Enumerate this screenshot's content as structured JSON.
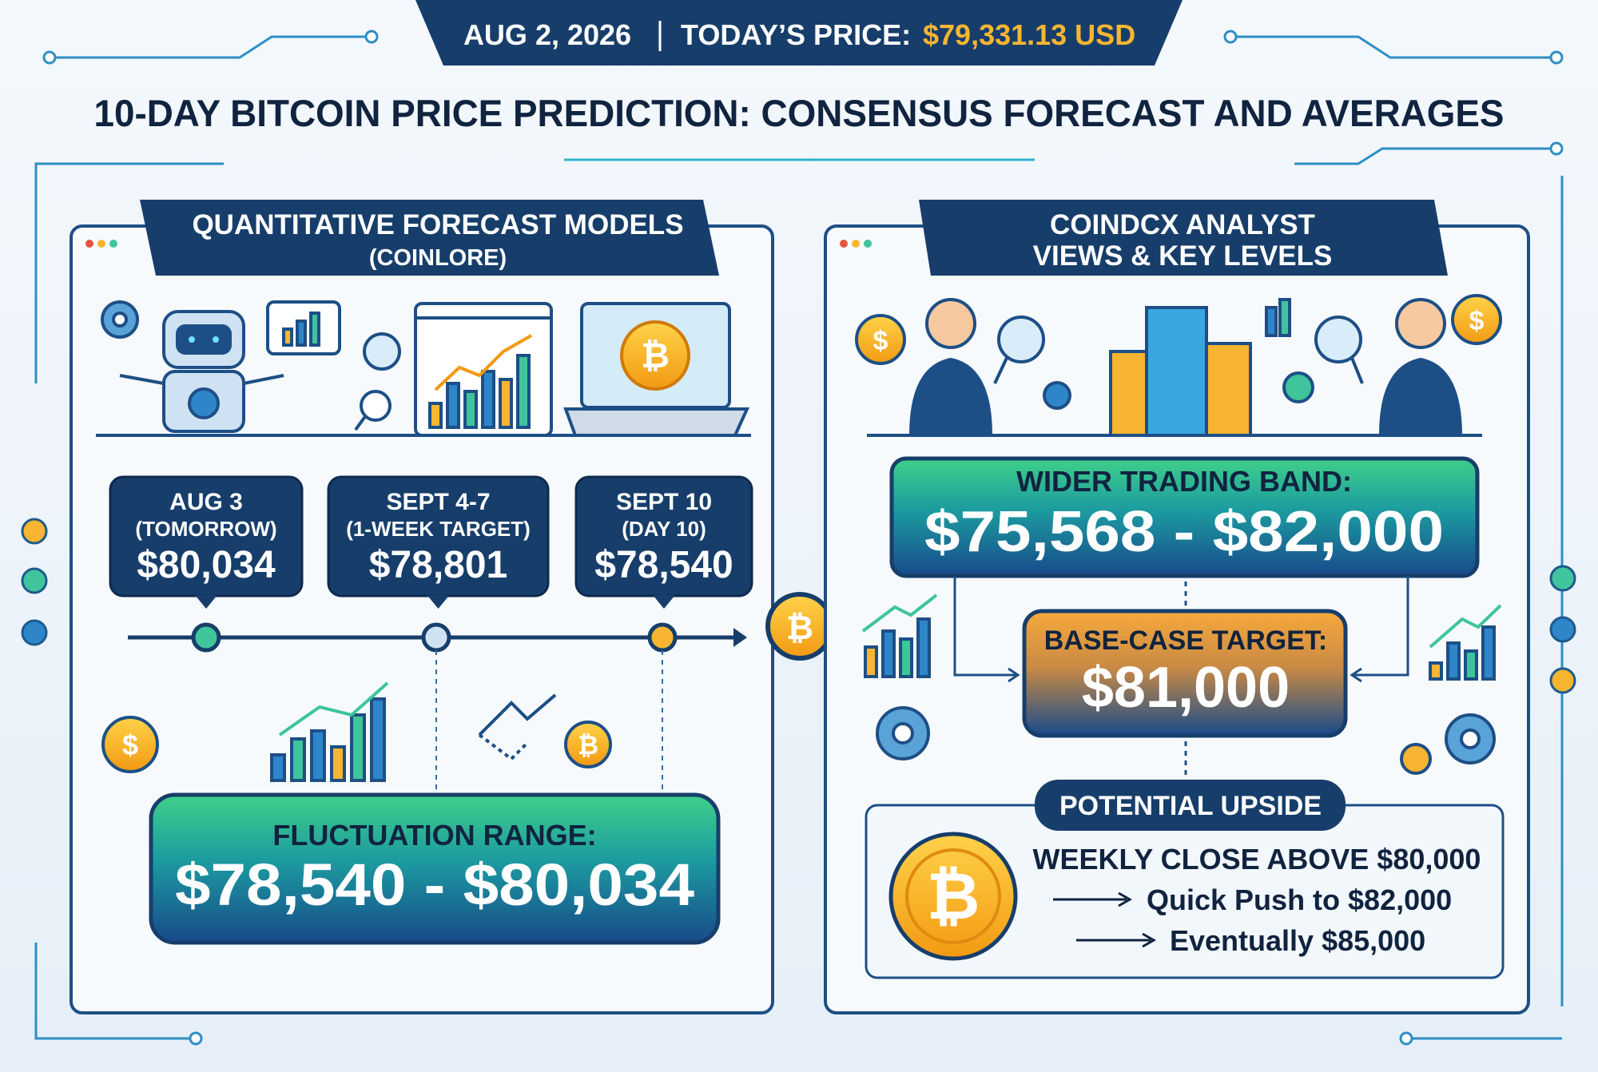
{
  "header": {
    "date": "AUG 2, 2026",
    "price_label": "TODAY’S PRICE:",
    "price": "$79,331.13 USD"
  },
  "title": "10-DAY BITCOIN PRICE PREDICTION: CONSENSUS FORECAST AND AVERAGES",
  "coin_symbol": "₿",
  "dollar_symbol": "$",
  "left_panel": {
    "title": "QUANTITATIVE FORECAST MODELS",
    "subtitle": "(COINLORE)",
    "forecasts": [
      {
        "date": "AUG 3",
        "note": "(TOMORROW)",
        "price": "$80,034"
      },
      {
        "date": "SEPT 4-7",
        "note": "(1-WEEK TARGET)",
        "price": "$78,801"
      },
      {
        "date": "SEPT 10",
        "note": "(DAY 10)",
        "price": "$78,540"
      }
    ],
    "range": {
      "label": "FLUCTUATION RANGE:",
      "value": "$78,540 - $80,034"
    }
  },
  "right_panel": {
    "title_lines": [
      "COINDCX ANALYST",
      "VIEWS & KEY LEVELS"
    ],
    "band": {
      "label": "WIDER TRADING BAND:",
      "value": "$75,568 - $82,000"
    },
    "base_case": {
      "label": "BASE-CASE TARGET:",
      "value": "$81,000"
    },
    "upside": {
      "label": "POTENTIAL UPSIDE",
      "lines": [
        "WEEKLY CLOSE ABOVE $80,000",
        "Quick Push to $82,000",
        "Eventually $85,000"
      ]
    }
  }
}
